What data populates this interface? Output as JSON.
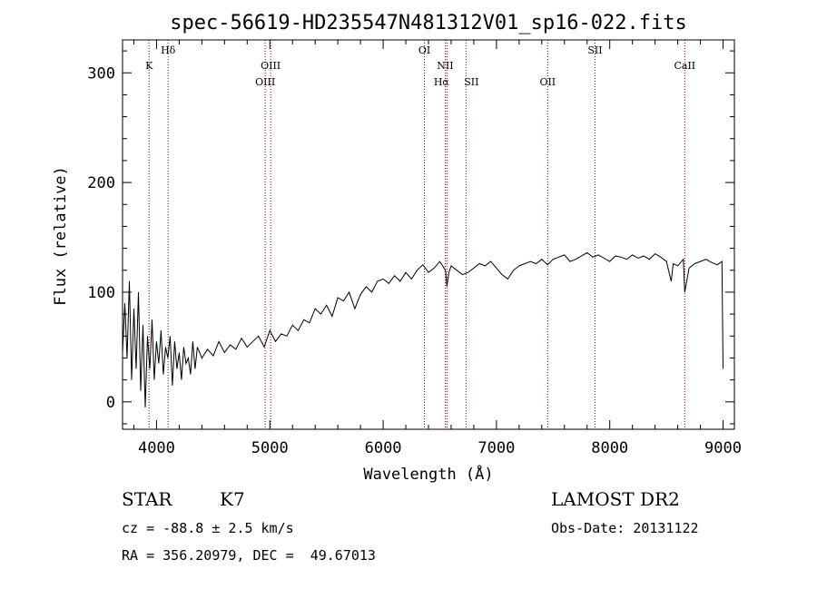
{
  "chart_data": {
    "type": "line",
    "title": "spec-56619-HD235547N481312V01_sp16-022.fits",
    "xlabel": "Wavelength (Å)",
    "ylabel": "Flux (relative)",
    "xlim": [
      3700,
      9100
    ],
    "ylim": [
      -25,
      330
    ],
    "xticks": [
      4000,
      5000,
      6000,
      7000,
      8000,
      9000
    ],
    "yticks": [
      0,
      100,
      200,
      300
    ],
    "series": [
      {
        "x": [
          3700,
          3720,
          3740,
          3760,
          3780,
          3800,
          3820,
          3840,
          3860,
          3880,
          3900,
          3920,
          3940,
          3960,
          3980,
          4000,
          4020,
          4040,
          4060,
          4080,
          4100,
          4120,
          4140,
          4160,
          4180,
          4200,
          4220,
          4240,
          4260,
          4280,
          4300,
          4320,
          4340,
          4360,
          4380,
          4400,
          4450,
          4500,
          4550,
          4600,
          4650,
          4700,
          4750,
          4800,
          4850,
          4900,
          4950,
          5000,
          5050,
          5100,
          5150,
          5200,
          5250,
          5300,
          5350,
          5400,
          5450,
          5500,
          5550,
          5600,
          5650,
          5700,
          5750,
          5800,
          5850,
          5900,
          5950,
          6000,
          6050,
          6100,
          6150,
          6200,
          6250,
          6300,
          6350,
          6400,
          6450,
          6500,
          6550,
          6563,
          6580,
          6600,
          6650,
          6700,
          6750,
          6800,
          6850,
          6900,
          6950,
          7000,
          7050,
          7100,
          7150,
          7200,
          7250,
          7300,
          7350,
          7400,
          7450,
          7500,
          7550,
          7600,
          7650,
          7700,
          7750,
          7800,
          7850,
          7900,
          7950,
          8000,
          8050,
          8100,
          8150,
          8200,
          8250,
          8300,
          8350,
          8400,
          8450,
          8500,
          8542,
          8560,
          8600,
          8650,
          8662,
          8700,
          8750,
          8800,
          8850,
          8900,
          8950,
          8990,
          9000
        ],
        "values": [
          45,
          90,
          40,
          110,
          20,
          85,
          30,
          100,
          10,
          70,
          -5,
          60,
          30,
          75,
          20,
          55,
          35,
          65,
          25,
          50,
          40,
          60,
          15,
          55,
          30,
          45,
          20,
          50,
          35,
          40,
          25,
          55,
          30,
          50,
          45,
          40,
          48,
          42,
          55,
          45,
          52,
          48,
          58,
          50,
          55,
          60,
          50,
          65,
          55,
          62,
          60,
          70,
          65,
          75,
          72,
          85,
          80,
          88,
          78,
          95,
          92,
          100,
          85,
          98,
          105,
          100,
          110,
          112,
          108,
          115,
          110,
          118,
          112,
          120,
          125,
          118,
          122,
          128,
          120,
          105,
          118,
          124,
          120,
          116,
          118,
          122,
          126,
          124,
          128,
          122,
          116,
          112,
          120,
          124,
          126,
          128,
          126,
          130,
          125,
          130,
          132,
          134,
          128,
          130,
          133,
          136,
          132,
          134,
          131,
          128,
          133,
          132,
          130,
          134,
          131,
          133,
          130,
          135,
          132,
          128,
          110,
          126,
          124,
          130,
          100,
          122,
          126,
          128,
          130,
          127,
          125,
          128,
          30
        ]
      }
    ],
    "annotations": [
      {
        "wavelength": 3934,
        "label": "K"
      },
      {
        "wavelength": 4102,
        "label": "Hδ"
      },
      {
        "wavelength": 4959,
        "label": "OIII"
      },
      {
        "wavelength": 5007,
        "label": "OIII"
      },
      {
        "wavelength": 6364,
        "label": "OI"
      },
      {
        "wavelength": 6548,
        "label": "NII"
      },
      {
        "wavelength": 6563,
        "label": "Hα"
      },
      {
        "wavelength": 6731,
        "label": "SII"
      },
      {
        "wavelength": 7452,
        "label": "OII"
      },
      {
        "wavelength": 7870,
        "label": "SII"
      },
      {
        "wavelength": 8662,
        "label": "CaII"
      }
    ],
    "line_color": "#000000",
    "annotation_color": "#8b0000"
  },
  "info": {
    "object_type": "STAR",
    "subclass": "K7",
    "survey": "LAMOST DR2",
    "cz": "cz = -88.8 ± 2.5 km/s",
    "obs_date": "Obs-Date: 20131122",
    "coords": "RA = 356.20979, DEC =  49.67013"
  }
}
